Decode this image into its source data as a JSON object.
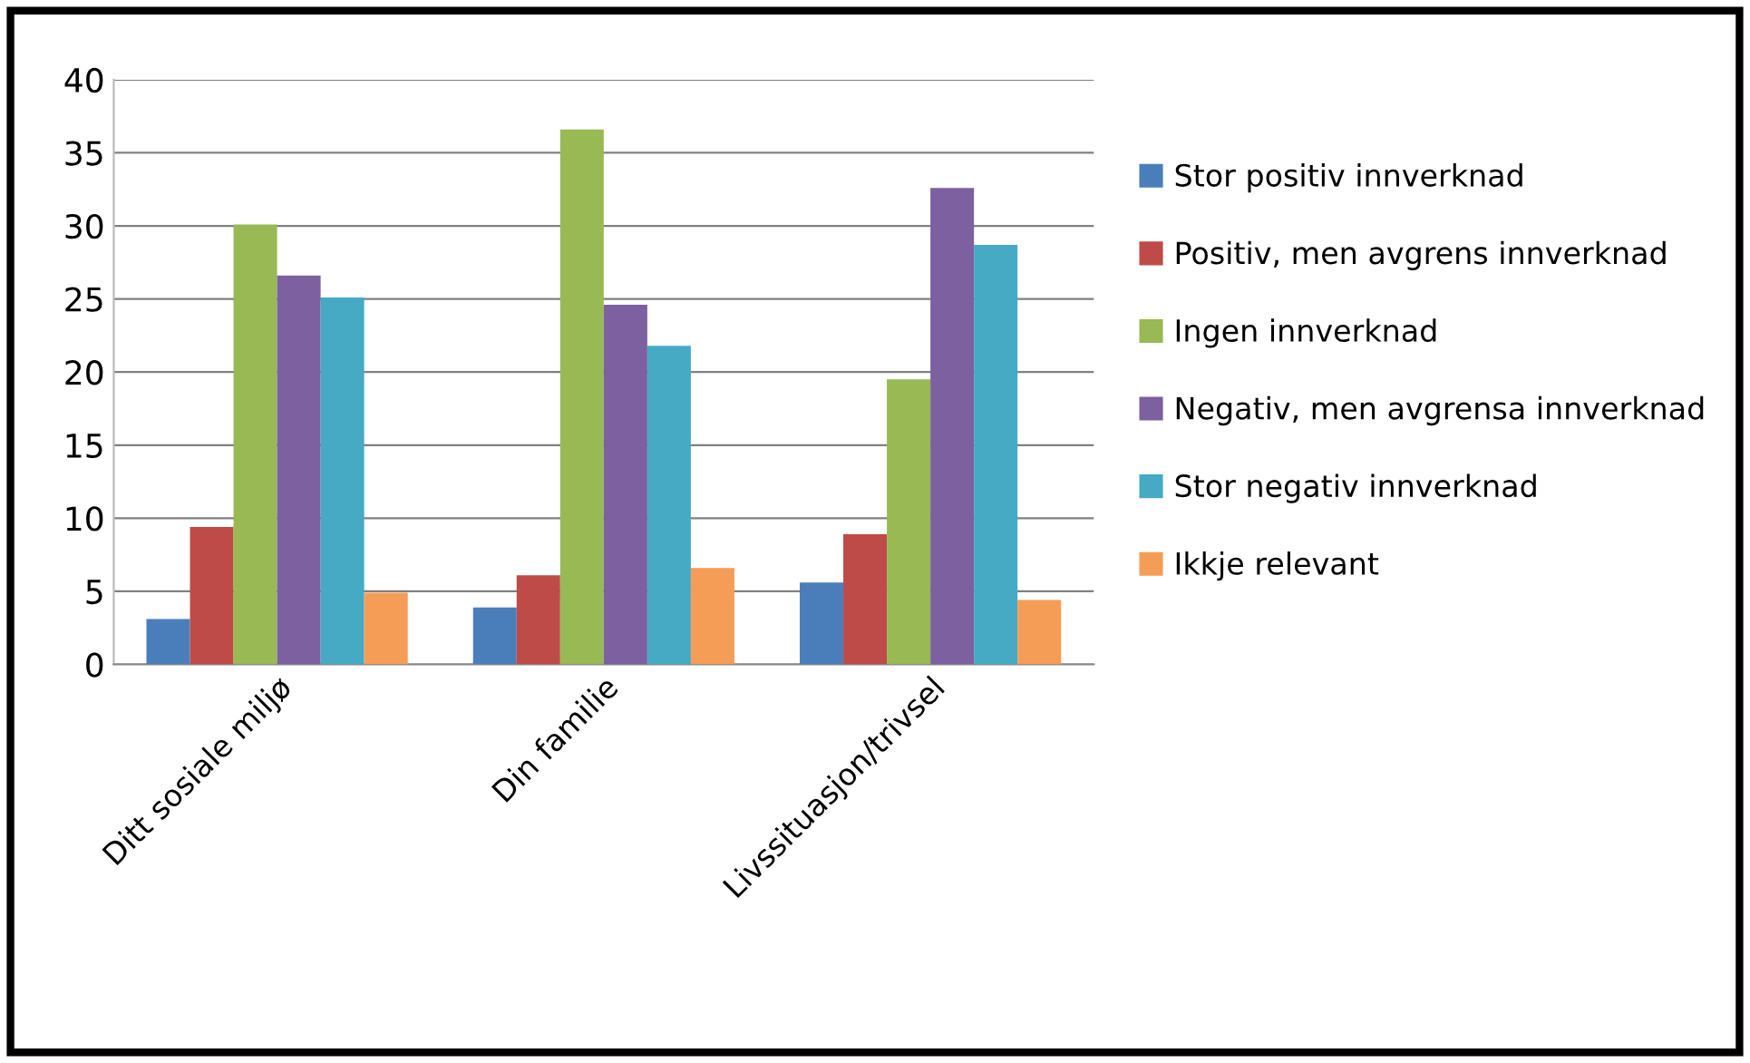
{
  "chart_data": {
    "type": "bar",
    "categories": [
      "Ditt sosiale miljø",
      "Din familie",
      "Livssituasjon/trivsel"
    ],
    "series": [
      {
        "name": "Stor positiv innverknad",
        "color": "#4a7ebb",
        "values": [
          3.1,
          3.9,
          5.6
        ]
      },
      {
        "name": "Positiv, men avgrens innverknad",
        "color": "#be4b48",
        "values": [
          9.4,
          6.1,
          8.9
        ]
      },
      {
        "name": "Ingen innverknad",
        "color": "#98b954",
        "values": [
          30.1,
          36.6,
          19.5
        ]
      },
      {
        "name": "Negativ, men avgrensa innverknad",
        "color": "#7d60a0",
        "values": [
          26.6,
          24.6,
          32.6
        ]
      },
      {
        "name": "Stor negativ innverknad",
        "color": "#46aac5",
        "values": [
          25.1,
          21.8,
          28.7
        ]
      },
      {
        "name": "Ikkje relevant",
        "color": "#f59d56",
        "values": [
          4.9,
          6.6,
          4.4
        ]
      }
    ],
    "ylim": [
      0,
      40
    ],
    "yticks": [
      0,
      5,
      10,
      15,
      20,
      25,
      30,
      35,
      40
    ],
    "grid": "y",
    "legend": "right"
  }
}
